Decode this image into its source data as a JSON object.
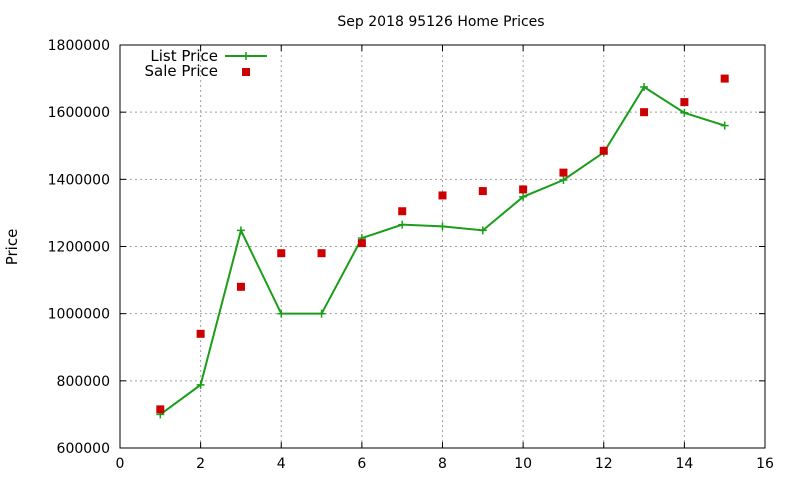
{
  "chart_data": {
    "type": "line",
    "title": "Sep 2018 95126 Home Prices",
    "xlabel": "",
    "ylabel": "Price",
    "xlim": [
      0,
      16
    ],
    "ylim": [
      600000,
      1800000
    ],
    "xticks": [
      "0",
      "2",
      "4",
      "6",
      "8",
      "10",
      "12",
      "14",
      "16"
    ],
    "yticks": [
      "600000",
      "800000",
      "1000000",
      "1200000",
      "1400000",
      "1600000",
      "1800000"
    ],
    "grid": true,
    "legend_position": "top-left",
    "series": [
      {
        "name": "List Price",
        "style": "line+cross-markers",
        "color": "#1a9e1a",
        "x": [
          1,
          2,
          3,
          4,
          5,
          6,
          7,
          8,
          9,
          10,
          11,
          12,
          13,
          14,
          15
        ],
        "values": [
          700000,
          788000,
          1248000,
          1000000,
          1000000,
          1225000,
          1265000,
          1260000,
          1248000,
          1348000,
          1398000,
          1480000,
          1675000,
          1598000,
          1560000
        ]
      },
      {
        "name": "Sale Price",
        "style": "square-markers",
        "color": "#cc0000",
        "x": [
          1,
          2,
          3,
          4,
          5,
          6,
          7,
          8,
          9,
          10,
          11,
          12,
          13,
          14,
          15
        ],
        "values": [
          715000,
          940000,
          1080000,
          1180000,
          1180000,
          1210000,
          1305000,
          1352000,
          1365000,
          1370000,
          1420000,
          1485000,
          1600000,
          1630000,
          1700000
        ]
      }
    ]
  }
}
